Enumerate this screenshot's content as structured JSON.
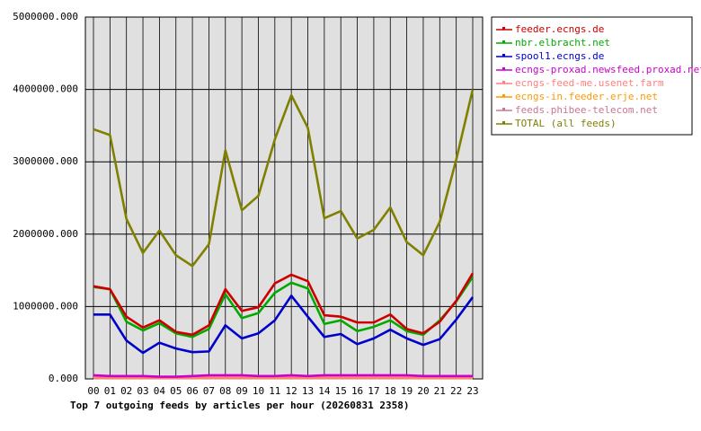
{
  "chart_data": {
    "type": "line",
    "title": "Top 7 outgoing feeds by articles per hour (20260831 2358)",
    "categories": [
      "00",
      "01",
      "02",
      "03",
      "04",
      "05",
      "06",
      "07",
      "08",
      "09",
      "10",
      "11",
      "12",
      "13",
      "14",
      "15",
      "16",
      "17",
      "18",
      "19",
      "20",
      "21",
      "22",
      "23"
    ],
    "ylim": [
      0,
      5000000
    ],
    "yticks": [
      {
        "value": 0,
        "label": "0.000"
      },
      {
        "value": 1000000,
        "label": "1000000.000"
      },
      {
        "value": 2000000,
        "label": "2000000.000"
      },
      {
        "value": 3000000,
        "label": "3000000.000"
      },
      {
        "value": 4000000,
        "label": "4000000.000"
      },
      {
        "value": 5000000,
        "label": "5000000.000"
      }
    ],
    "grid": true,
    "legend": "right",
    "series": [
      {
        "name": "feeder.ecngs.de",
        "color": "#cc0000",
        "values": [
          1280000,
          1240000,
          860000,
          710000,
          810000,
          650000,
          610000,
          740000,
          1240000,
          940000,
          990000,
          1320000,
          1440000,
          1350000,
          880000,
          860000,
          780000,
          780000,
          890000,
          690000,
          630000,
          790000,
          1080000,
          1460000
        ]
      },
      {
        "name": "nbr.elbracht.net",
        "color": "#00aa00",
        "values": [
          1270000,
          1240000,
          790000,
          670000,
          770000,
          630000,
          580000,
          690000,
          1170000,
          840000,
          910000,
          1190000,
          1330000,
          1250000,
          760000,
          810000,
          660000,
          720000,
          810000,
          660000,
          610000,
          810000,
          1070000,
          1410000
        ]
      },
      {
        "name": "spool1.ecngs.de",
        "color": "#0000cc",
        "values": [
          890000,
          890000,
          530000,
          360000,
          500000,
          420000,
          370000,
          380000,
          740000,
          560000,
          630000,
          810000,
          1150000,
          860000,
          580000,
          620000,
          480000,
          560000,
          680000,
          560000,
          470000,
          550000,
          820000,
          1130000
        ]
      },
      {
        "name": "ecngs-proxad.newsfeed.proxad.net",
        "color": "#cc00cc",
        "values": [
          50000,
          40000,
          40000,
          40000,
          30000,
          30000,
          40000,
          50000,
          50000,
          50000,
          40000,
          40000,
          50000,
          40000,
          50000,
          50000,
          50000,
          50000,
          50000,
          50000,
          40000,
          40000,
          40000,
          40000
        ]
      },
      {
        "name": "ecngs-feed-me.usenet.farm",
        "color": "#ff8080",
        "values": [
          20000,
          20000,
          20000,
          20000,
          20000,
          20000,
          20000,
          20000,
          20000,
          20000,
          20000,
          20000,
          20000,
          20000,
          20000,
          20000,
          20000,
          20000,
          20000,
          20000,
          20000,
          20000,
          20000,
          20000
        ]
      },
      {
        "name": "ecngs-in.feeder.erje.net",
        "color": "#ff9900",
        "values": [
          15000,
          15000,
          15000,
          15000,
          15000,
          15000,
          15000,
          15000,
          15000,
          15000,
          15000,
          15000,
          15000,
          15000,
          15000,
          15000,
          15000,
          15000,
          15000,
          15000,
          15000,
          15000,
          15000,
          15000
        ]
      },
      {
        "name": "feeds.phibee-telecom.net",
        "color": "#c87890",
        "values": [
          10000,
          10000,
          10000,
          10000,
          10000,
          10000,
          10000,
          10000,
          10000,
          10000,
          10000,
          10000,
          10000,
          10000,
          10000,
          10000,
          10000,
          10000,
          10000,
          10000,
          10000,
          10000,
          10000,
          10000
        ]
      },
      {
        "name": "TOTAL (all feeds)",
        "color": "#808000",
        "values": [
          3450000,
          3370000,
          2210000,
          1740000,
          2050000,
          1710000,
          1560000,
          1860000,
          3160000,
          2330000,
          2530000,
          3310000,
          3920000,
          3470000,
          2220000,
          2320000,
          1940000,
          2060000,
          2370000,
          1890000,
          1710000,
          2170000,
          3030000,
          4000000
        ]
      }
    ]
  }
}
